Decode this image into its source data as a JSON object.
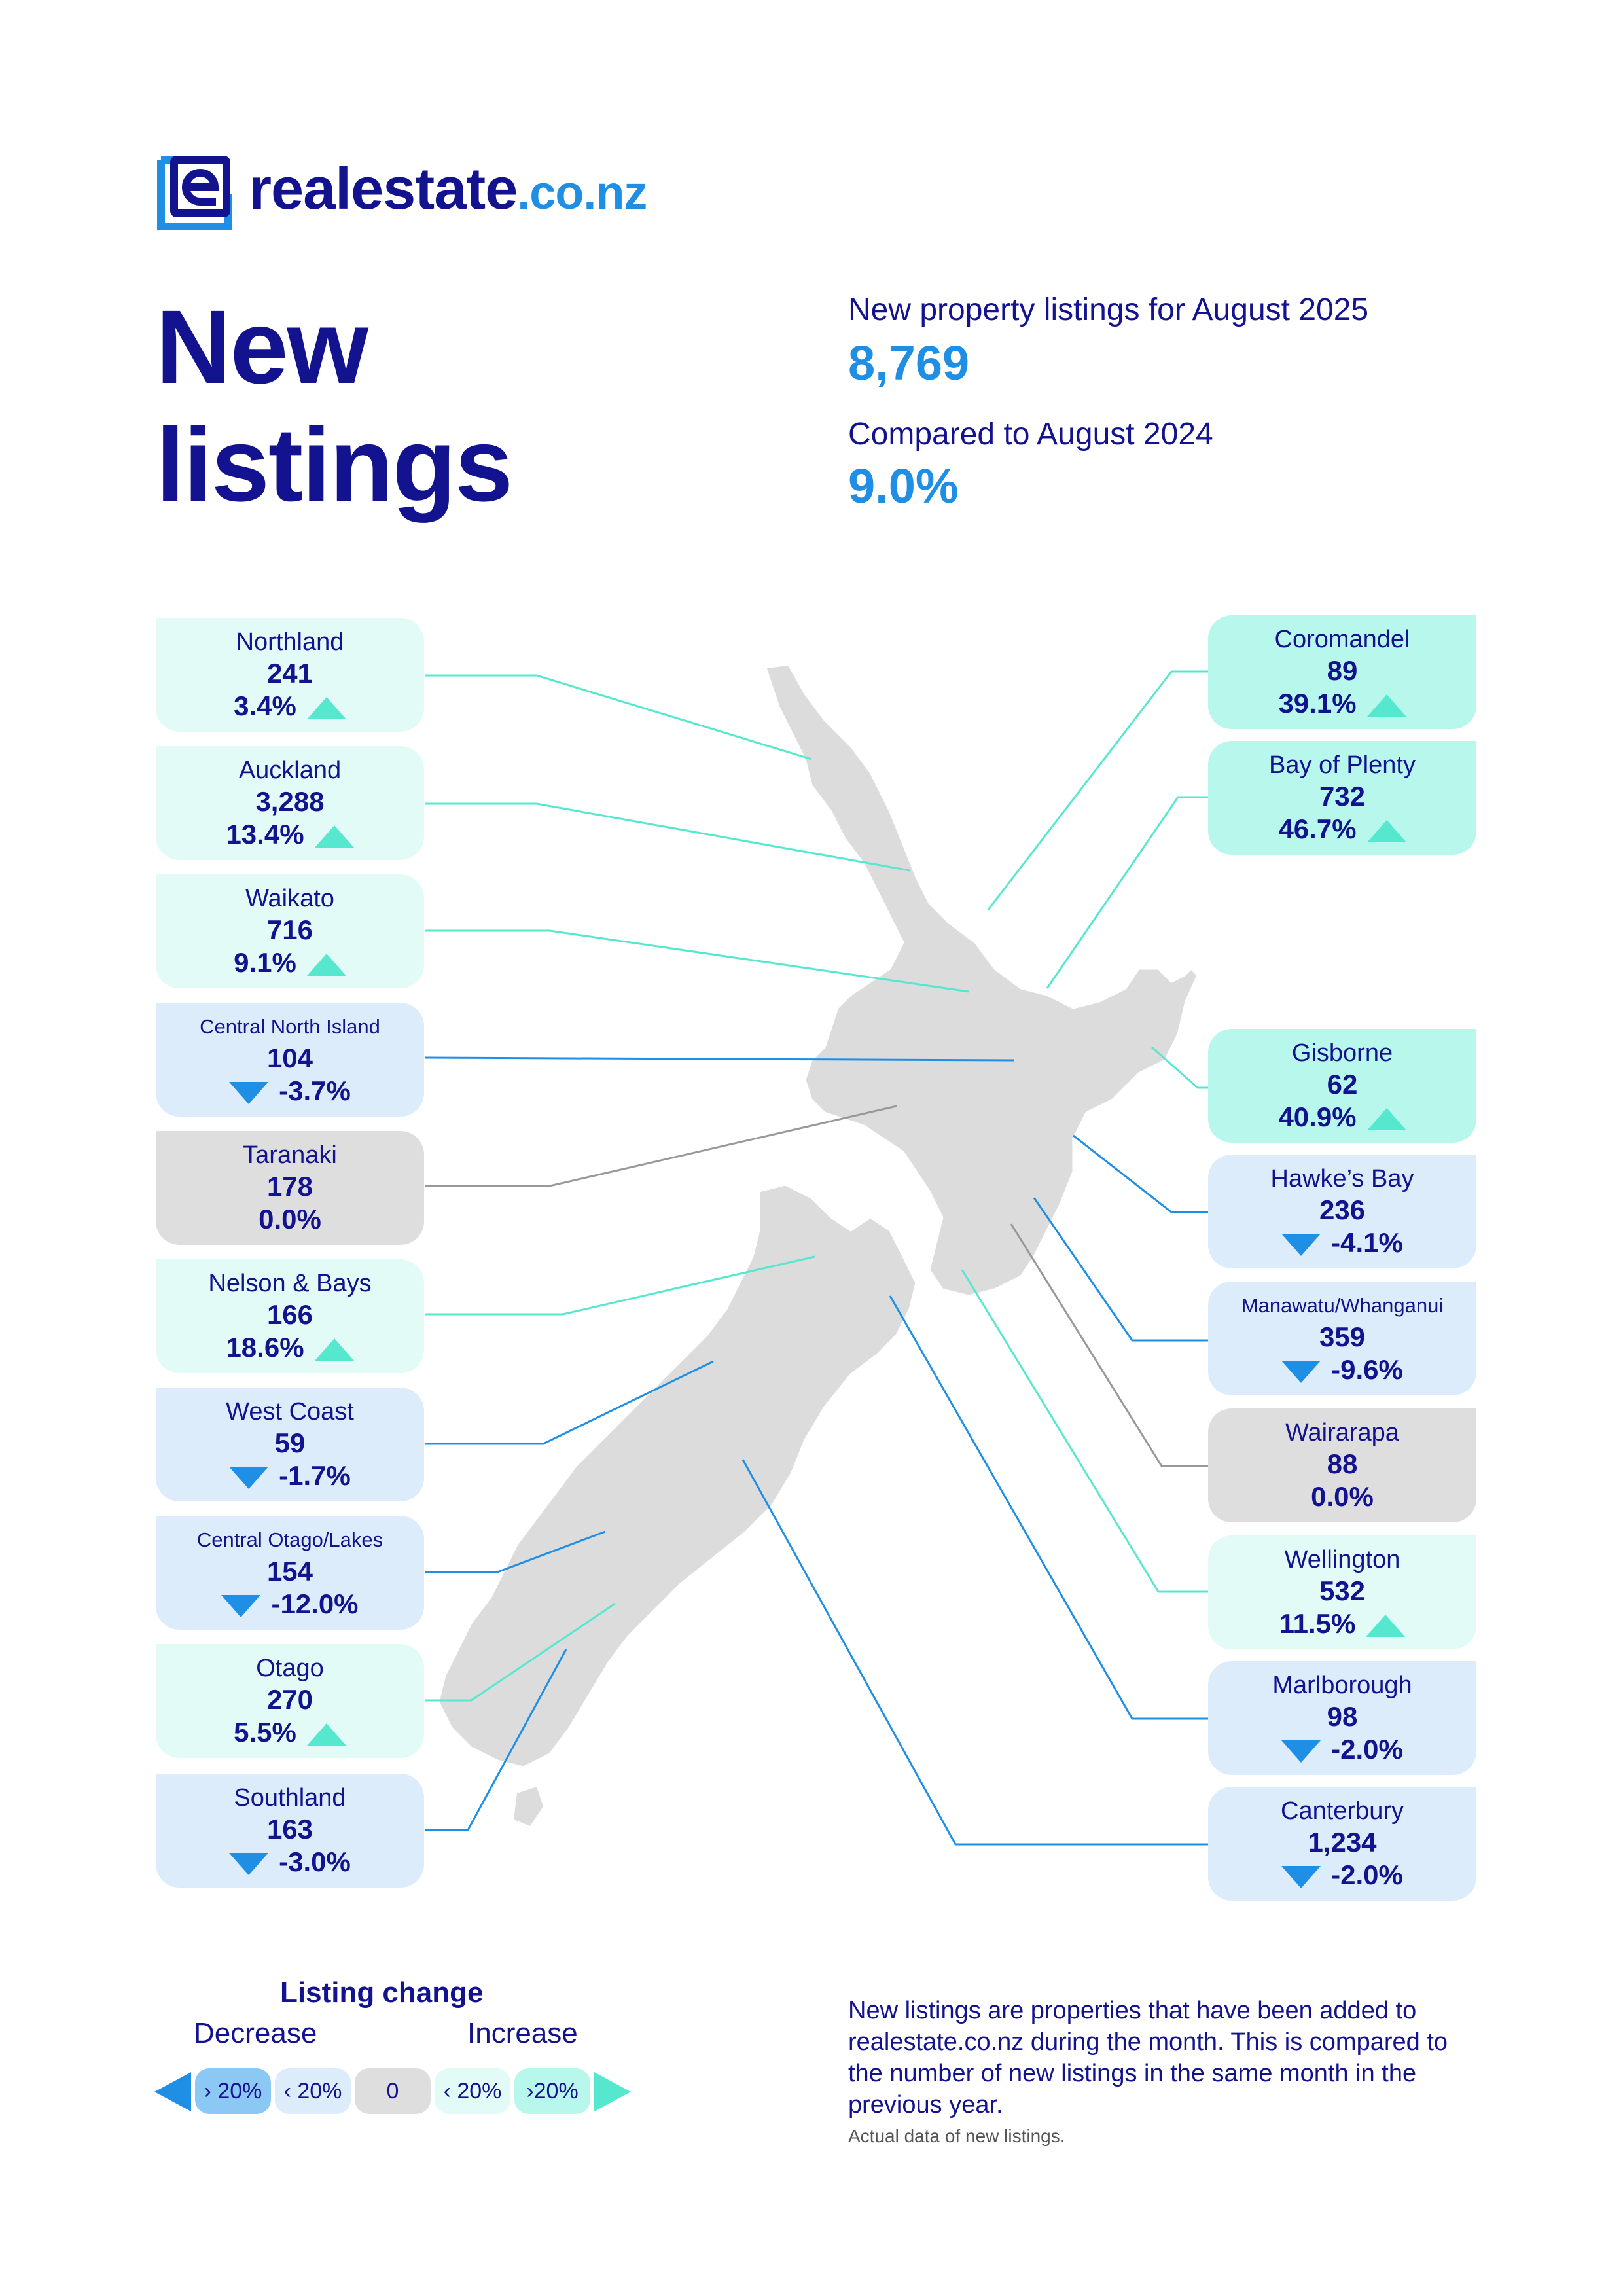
{
  "brand": {
    "name": "realestate",
    "tld": ".co.nz"
  },
  "title": "New listings",
  "summary": {
    "listings_label": "New property listings for August 2025",
    "listings_value": "8,769",
    "compare_label": "Compared to August 2024",
    "compare_value": "9.0%"
  },
  "colors": {
    "navy": "#13138f",
    "blue": "#1f8fe6",
    "teal": "#55e8cf",
    "increase_bg": "#e2fbf6",
    "strong_increase_bg": "#b8f7eb",
    "decrease_bg": "#dcecfb",
    "neutral_bg": "#dedede"
  },
  "regions": [
    {
      "name": "Northland",
      "count": "241",
      "change": "3.4%",
      "trend": "up"
    },
    {
      "name": "Auckland",
      "count": "3,288",
      "change": "13.4%",
      "trend": "up"
    },
    {
      "name": "Waikato",
      "count": "716",
      "change": "9.1%",
      "trend": "up"
    },
    {
      "name": "Central North Island",
      "count": "104",
      "change": "-3.7%",
      "trend": "down"
    },
    {
      "name": "Taranaki",
      "count": "178",
      "change": "0.0%",
      "trend": "flat"
    },
    {
      "name": "Nelson & Bays",
      "count": "166",
      "change": "18.6%",
      "trend": "up"
    },
    {
      "name": "West Coast",
      "count": "59",
      "change": "-1.7%",
      "trend": "down"
    },
    {
      "name": "Central Otago/Lakes",
      "count": "154",
      "change": "-12.0%",
      "trend": "down"
    },
    {
      "name": "Otago",
      "count": "270",
      "change": "5.5%",
      "trend": "up"
    },
    {
      "name": "Southland",
      "count": "163",
      "change": "-3.0%",
      "trend": "down"
    },
    {
      "name": "Coromandel",
      "count": "89",
      "change": "39.1%",
      "trend": "up"
    },
    {
      "name": "Bay of Plenty",
      "count": "732",
      "change": "46.7%",
      "trend": "up"
    },
    {
      "name": "Gisborne",
      "count": "62",
      "change": "40.9%",
      "trend": "up"
    },
    {
      "name": "Hawke’s Bay",
      "count": "236",
      "change": "-4.1%",
      "trend": "down"
    },
    {
      "name": "Manawatu/Whanganui",
      "count": "359",
      "change": "-9.6%",
      "trend": "down"
    },
    {
      "name": "Wairarapa",
      "count": "88",
      "change": "0.0%",
      "trend": "flat"
    },
    {
      "name": "Wellington",
      "count": "532",
      "change": "11.5%",
      "trend": "up"
    },
    {
      "name": "Marlborough",
      "count": "98",
      "change": "-2.0%",
      "trend": "down"
    },
    {
      "name": "Canterbury",
      "count": "1,234",
      "change": "-2.0%",
      "trend": "down"
    }
  ],
  "legend": {
    "title": "Listing change",
    "decrease": "Decrease",
    "increase": "Increase",
    "items": [
      "› 20%",
      "‹ 20%",
      "0",
      "‹ 20%",
      "›20%"
    ]
  },
  "footnote": {
    "text": "New listings are properties that have been added to realestate.co.nz during the month. This is compared to the number of new listings in the same month in the previous year.",
    "note": "Actual data of new listings."
  }
}
